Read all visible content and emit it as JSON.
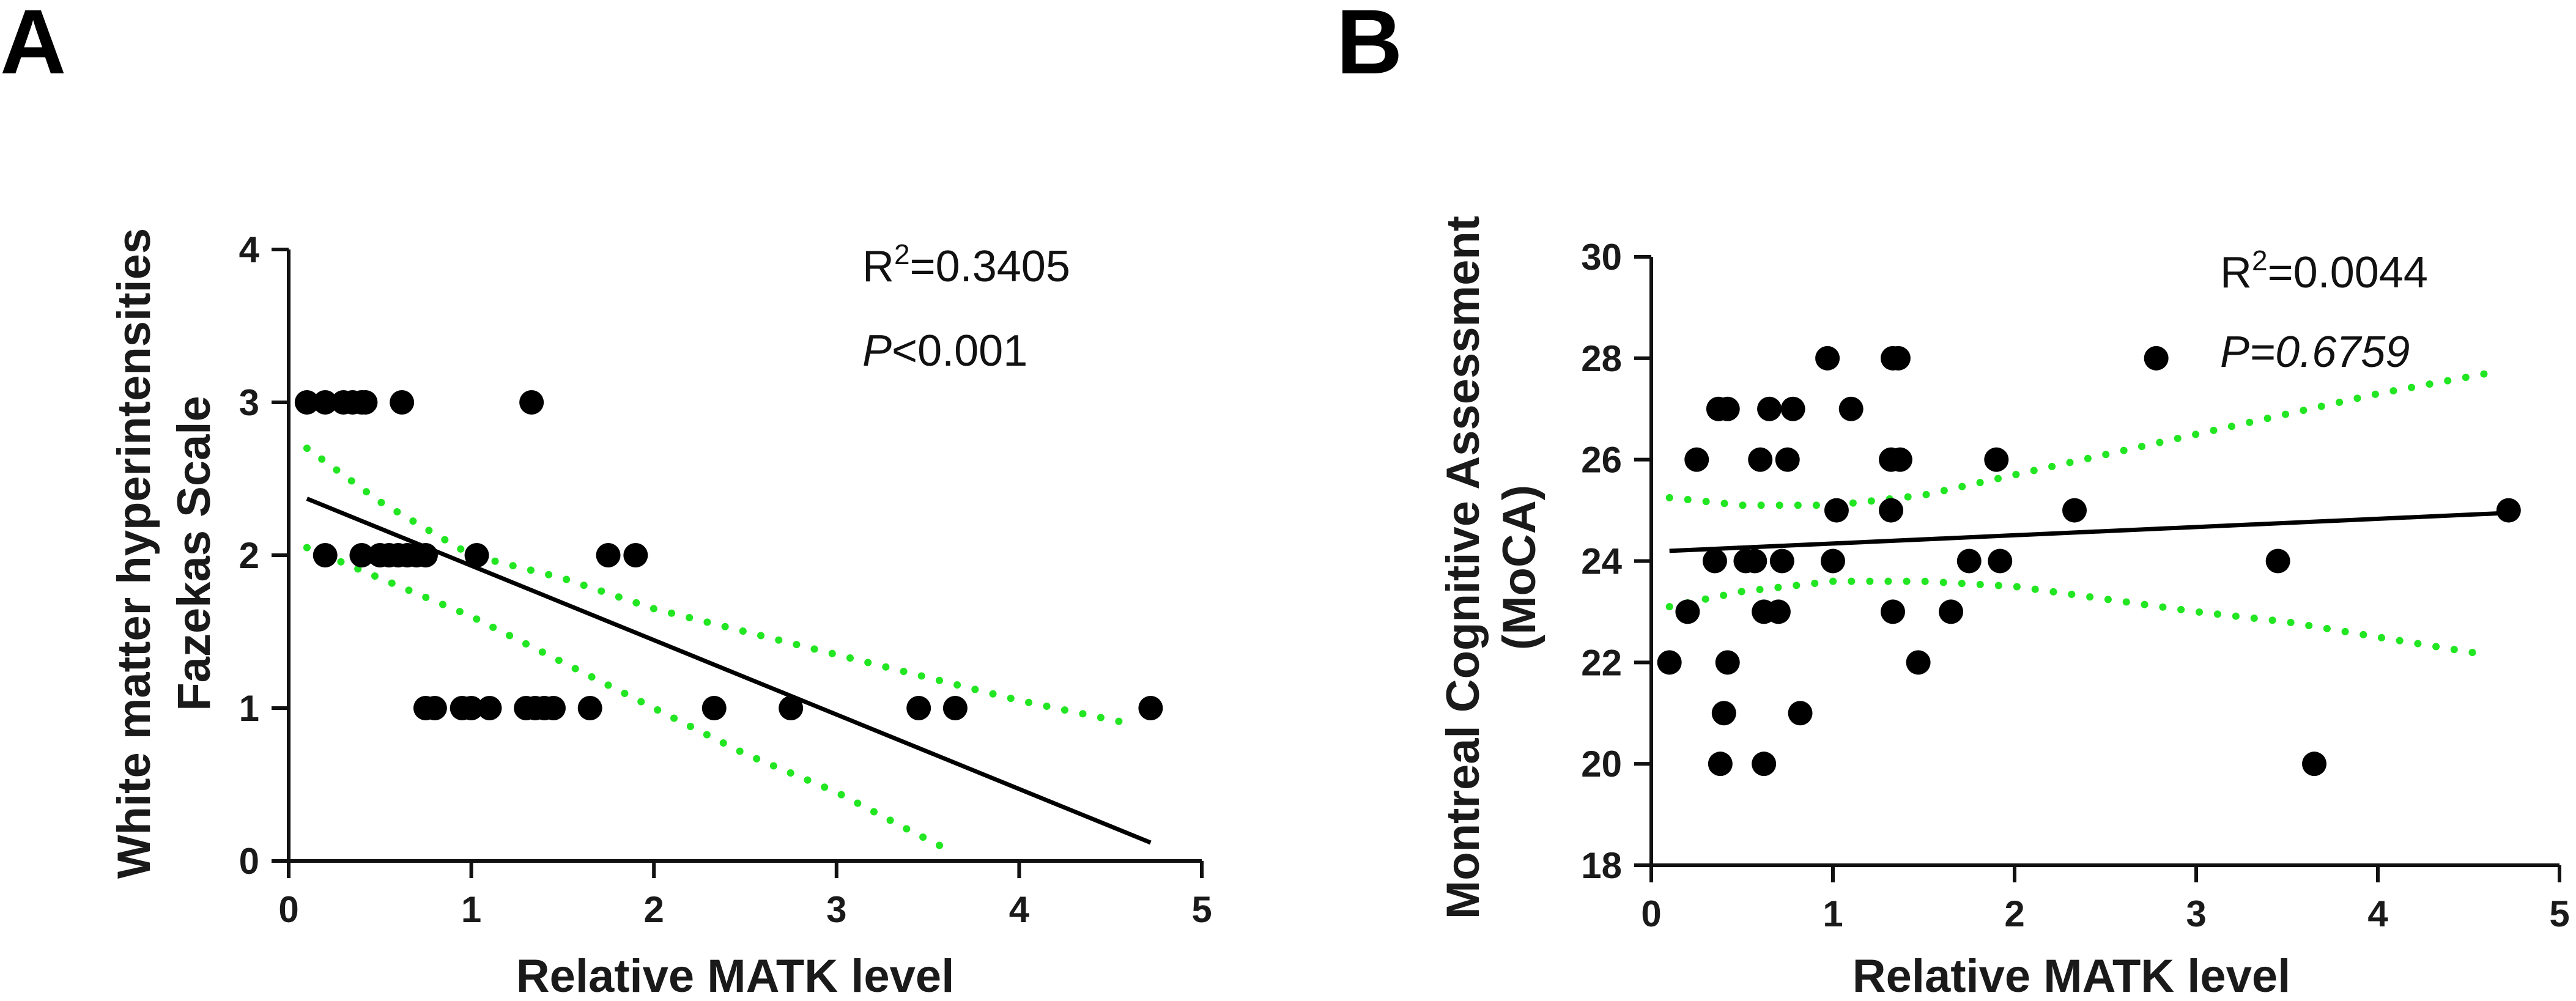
{
  "chart_data": [
    {
      "panel": "A",
      "type": "scatter",
      "xlabel": "Relative MATK level",
      "ylabel": [
        "White matter hyperintensities",
        "Fazekas Scale"
      ],
      "xlim": [
        0,
        5
      ],
      "ylim": [
        0,
        4
      ],
      "xticks": [
        0,
        1,
        2,
        3,
        4,
        5
      ],
      "yticks": [
        0,
        1,
        2,
        3,
        4
      ],
      "annotation": {
        "r2_prefix": "R",
        "r2_sup": "2",
        "r2_value": "=0.3405",
        "p_symbol": "P",
        "p_value": "<0.001"
      },
      "points": [
        [
          0.1,
          3
        ],
        [
          0.2,
          3
        ],
        [
          0.3,
          3
        ],
        [
          0.35,
          3
        ],
        [
          0.4,
          3
        ],
        [
          0.42,
          3
        ],
        [
          0.62,
          3
        ],
        [
          1.33,
          3
        ],
        [
          0.2,
          2
        ],
        [
          0.4,
          2
        ],
        [
          0.5,
          2
        ],
        [
          0.55,
          2
        ],
        [
          0.6,
          2
        ],
        [
          0.65,
          2
        ],
        [
          0.7,
          2
        ],
        [
          0.75,
          2
        ],
        [
          1.03,
          2
        ],
        [
          1.75,
          2
        ],
        [
          1.9,
          2
        ],
        [
          0.75,
          1
        ],
        [
          0.8,
          1
        ],
        [
          0.95,
          1
        ],
        [
          1.0,
          1
        ],
        [
          1.1,
          1
        ],
        [
          1.3,
          1
        ],
        [
          1.35,
          1
        ],
        [
          1.4,
          1
        ],
        [
          1.45,
          1
        ],
        [
          1.65,
          1
        ],
        [
          2.33,
          1
        ],
        [
          2.75,
          1
        ],
        [
          3.45,
          1
        ],
        [
          3.65,
          1
        ],
        [
          4.72,
          1
        ]
      ],
      "regression": {
        "x": [
          0.1,
          4.72
        ],
        "y": [
          2.37,
          0.12
        ]
      },
      "ci_upper": {
        "x": [
          0.1,
          0.5,
          1.0,
          1.5,
          2.0,
          2.5,
          3.0,
          3.5,
          4.0,
          4.6
        ],
        "y": [
          2.7,
          2.35,
          2.0,
          1.85,
          1.65,
          1.5,
          1.35,
          1.2,
          1.05,
          0.9
        ]
      },
      "ci_lower": {
        "x": [
          0.1,
          0.5,
          1.0,
          1.5,
          2.0,
          2.5,
          3.0,
          3.4,
          3.6
        ],
        "y": [
          2.05,
          1.85,
          1.6,
          1.3,
          1.0,
          0.7,
          0.45,
          0.2,
          0.08
        ]
      }
    },
    {
      "panel": "B",
      "type": "scatter",
      "xlabel": "Relative MATK level",
      "ylabel": [
        "Montreal Cognitive Assessment",
        "(MoCA)"
      ],
      "xlim": [
        0,
        5
      ],
      "ylim": [
        18,
        30
      ],
      "xticks": [
        0,
        1,
        2,
        3,
        4,
        5
      ],
      "yticks": [
        18,
        20,
        22,
        24,
        26,
        28,
        30
      ],
      "annotation": {
        "r2_prefix": "R",
        "r2_sup": "2",
        "r2_value": "=0.0044",
        "p_symbol": "P",
        "p_value": "=0.6759"
      },
      "points": [
        [
          0.1,
          22
        ],
        [
          0.2,
          23
        ],
        [
          0.25,
          26
        ],
        [
          0.35,
          24
        ],
        [
          0.37,
          27
        ],
        [
          0.42,
          27
        ],
        [
          0.38,
          20
        ],
        [
          0.4,
          21
        ],
        [
          0.42,
          22
        ],
        [
          0.52,
          24
        ],
        [
          0.57,
          24
        ],
        [
          0.6,
          26
        ],
        [
          0.62,
          23
        ],
        [
          0.62,
          20
        ],
        [
          0.65,
          27
        ],
        [
          0.7,
          23
        ],
        [
          0.72,
          24
        ],
        [
          0.75,
          26
        ],
        [
          0.78,
          27
        ],
        [
          0.82,
          21
        ],
        [
          0.97,
          28
        ],
        [
          1.0,
          24
        ],
        [
          1.02,
          25
        ],
        [
          1.1,
          27
        ],
        [
          1.33,
          28
        ],
        [
          1.36,
          28
        ],
        [
          1.32,
          26
        ],
        [
          1.37,
          26
        ],
        [
          1.32,
          25
        ],
        [
          1.33,
          23
        ],
        [
          1.47,
          22
        ],
        [
          1.65,
          23
        ],
        [
          1.75,
          24
        ],
        [
          1.9,
          26
        ],
        [
          1.92,
          24
        ],
        [
          2.33,
          25
        ],
        [
          2.78,
          28
        ],
        [
          3.45,
          24
        ],
        [
          3.65,
          20
        ],
        [
          4.72,
          25
        ]
      ],
      "regression": {
        "x": [
          0.1,
          4.72
        ],
        "y": [
          24.2,
          24.95
        ]
      },
      "ci_upper": {
        "x": [
          0.1,
          0.5,
          1.0,
          1.5,
          2.0,
          2.5,
          3.0,
          3.5,
          4.0,
          4.6
        ],
        "y": [
          25.25,
          25.1,
          25.1,
          25.3,
          25.7,
          26.1,
          26.5,
          26.9,
          27.3,
          27.7
        ]
      },
      "ci_lower": {
        "x": [
          0.1,
          0.5,
          1.0,
          1.5,
          2.0,
          2.5,
          3.0,
          3.5,
          4.0,
          4.6
        ],
        "y": [
          23.1,
          23.4,
          23.6,
          23.6,
          23.5,
          23.25,
          23.0,
          22.8,
          22.5,
          22.15
        ]
      }
    }
  ]
}
